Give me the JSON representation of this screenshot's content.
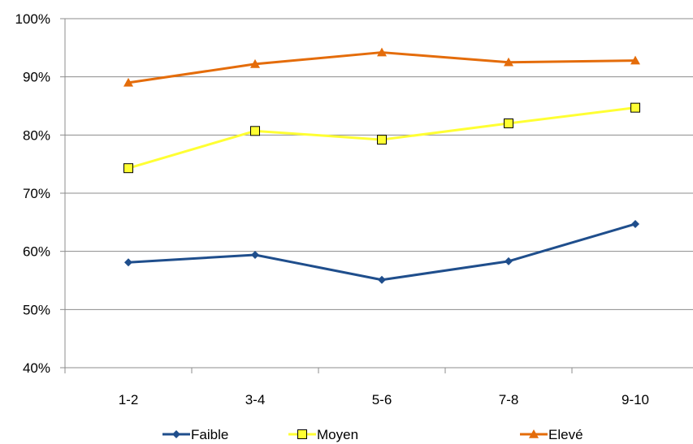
{
  "chart_data": {
    "type": "line",
    "categories": [
      "1-2",
      "3-4",
      "5-6",
      "7-8",
      "9-10"
    ],
    "y_ticks": [
      "40%",
      "50%",
      "60%",
      "70%",
      "80%",
      "90%",
      "100%"
    ],
    "ylim": [
      40,
      100
    ],
    "y_unit": "%",
    "grid": true,
    "legend_position": "bottom",
    "series": [
      {
        "name": "Faible",
        "marker": "diamond",
        "color": "#1f4e8c",
        "values": [
          58.1,
          59.4,
          55.1,
          58.3,
          64.7
        ]
      },
      {
        "name": "Moyen",
        "marker": "square",
        "color": "#ffff33",
        "values": [
          74.3,
          80.7,
          79.2,
          82.0,
          84.7
        ]
      },
      {
        "name": "Elevé",
        "marker": "triangle",
        "color": "#e46c0a",
        "values": [
          89.0,
          92.2,
          94.2,
          92.5,
          92.8
        ]
      }
    ]
  }
}
